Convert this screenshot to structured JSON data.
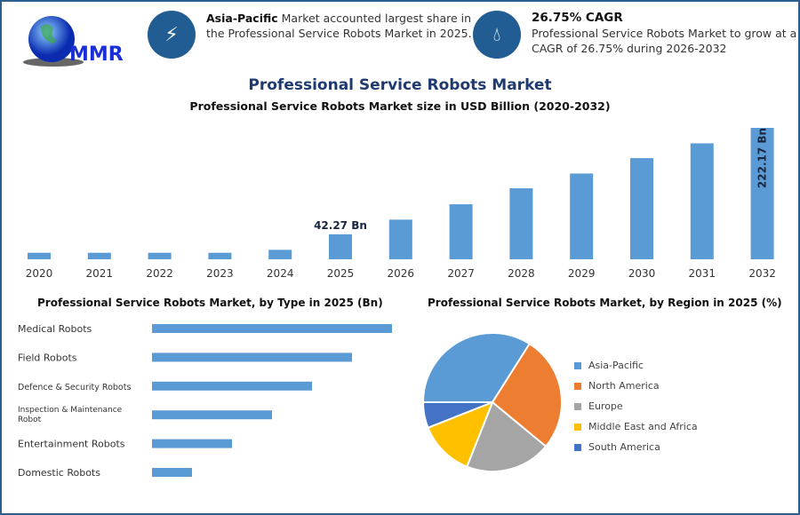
{
  "logo": {
    "text": "MMR"
  },
  "callouts": [
    {
      "icon": "lightning-icon",
      "bold": "Asia-Pacific",
      "text": " Market accounted largest share in the Professional Service Robots Market in 2025."
    },
    {
      "icon": "drop-icon",
      "bold": "26.75% CAGR",
      "text": "Professional Service Robots Market to grow at a CAGR of 26.75% during 2026-2032"
    }
  ],
  "title": "Professional Service Robots Market",
  "colors": {
    "bar": "#5b9bd5",
    "frame": "#2a5f8f"
  },
  "chart_data": [
    {
      "type": "bar",
      "title": "Professional Service Robots Market size in USD Billion (2020-2032)",
      "categories": [
        "2020",
        "2021",
        "2022",
        "2023",
        "2024",
        "2025",
        "2026",
        "2027",
        "2028",
        "2029",
        "2030",
        "2031",
        "2032"
      ],
      "values": [
        11,
        11,
        11,
        11,
        16,
        42.27,
        67,
        93,
        120,
        145,
        171,
        196,
        222.17
      ],
      "labels": {
        "2025": "42.27 Bn",
        "2032": "222.17 Bn"
      },
      "ylim": [
        0,
        222.17
      ]
    },
    {
      "type": "bar",
      "orientation": "horizontal",
      "title": "Professional Service Robots Market, by Type in 2025 (Bn)",
      "categories": [
        "Medical Robots",
        "Field Robots",
        "Defence & Security Robots",
        "Inspection & Maintenance Robot",
        "Entertainment Robots",
        "Domestic Robots"
      ],
      "values": [
        6,
        5,
        4,
        3,
        2,
        1
      ]
    },
    {
      "type": "pie",
      "title": "Professional Service Robots Market, by Region in 2025 (%)",
      "categories": [
        "Asia-Pacific",
        "North America",
        "Europe",
        "Middle East and Africa",
        "South America"
      ],
      "values": [
        34,
        27,
        20,
        13,
        6
      ],
      "colors": [
        "#5b9bd5",
        "#ed7d31",
        "#a5a5a5",
        "#ffc000",
        "#4472c4"
      ],
      "legend": "right"
    }
  ]
}
